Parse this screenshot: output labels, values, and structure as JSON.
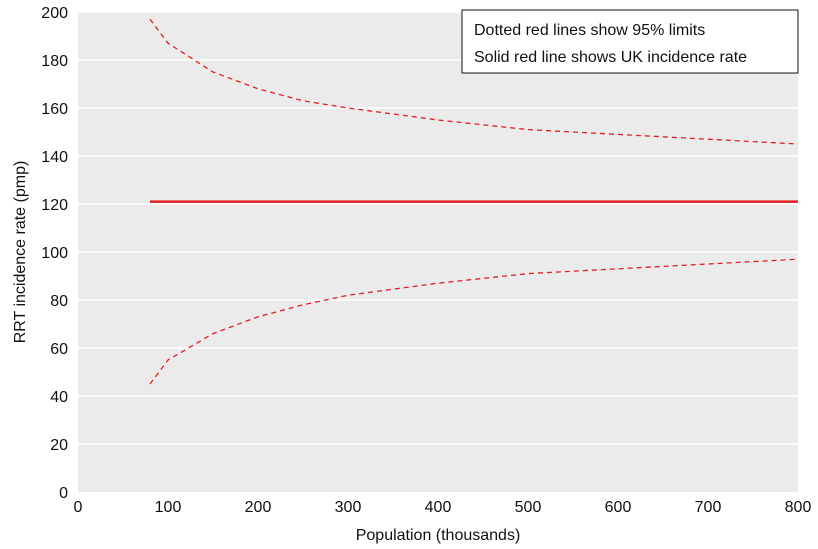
{
  "chart_data": {
    "type": "line",
    "xlabel": "Population (thousands)",
    "ylabel": "RRT incidence rate (pmp)",
    "xlim": [
      0,
      800
    ],
    "ylim": [
      0,
      200
    ],
    "x_ticks": [
      0,
      100,
      200,
      300,
      400,
      500,
      600,
      700,
      800
    ],
    "y_ticks": [
      0,
      20,
      40,
      60,
      80,
      100,
      120,
      140,
      160,
      180,
      200
    ],
    "grid": "horizontal",
    "legend": {
      "placement": "top-right",
      "lines": [
        "Dotted red lines show 95% limits",
        "Solid red line shows UK incidence rate"
      ]
    },
    "colors": {
      "series": "#e31e24",
      "grid": "#ffffff",
      "background": "#ebebeb"
    },
    "uk_rate": 121,
    "series": [
      {
        "style": "dashed",
        "x": [
          80,
          100,
          150,
          200,
          250,
          300,
          400,
          500,
          600,
          700,
          800
        ],
        "y": [
          197,
          187,
          175,
          168,
          163,
          160,
          155,
          151,
          149,
          147,
          145
        ]
      },
      {
        "style": "solid",
        "x": [
          80,
          800
        ],
        "y": [
          121,
          121
        ]
      },
      {
        "style": "dashed",
        "x": [
          80,
          100,
          150,
          200,
          250,
          300,
          400,
          500,
          600,
          700,
          800
        ],
        "y": [
          45,
          55,
          66,
          73,
          78,
          82,
          87,
          91,
          93,
          95,
          97
        ]
      }
    ]
  }
}
